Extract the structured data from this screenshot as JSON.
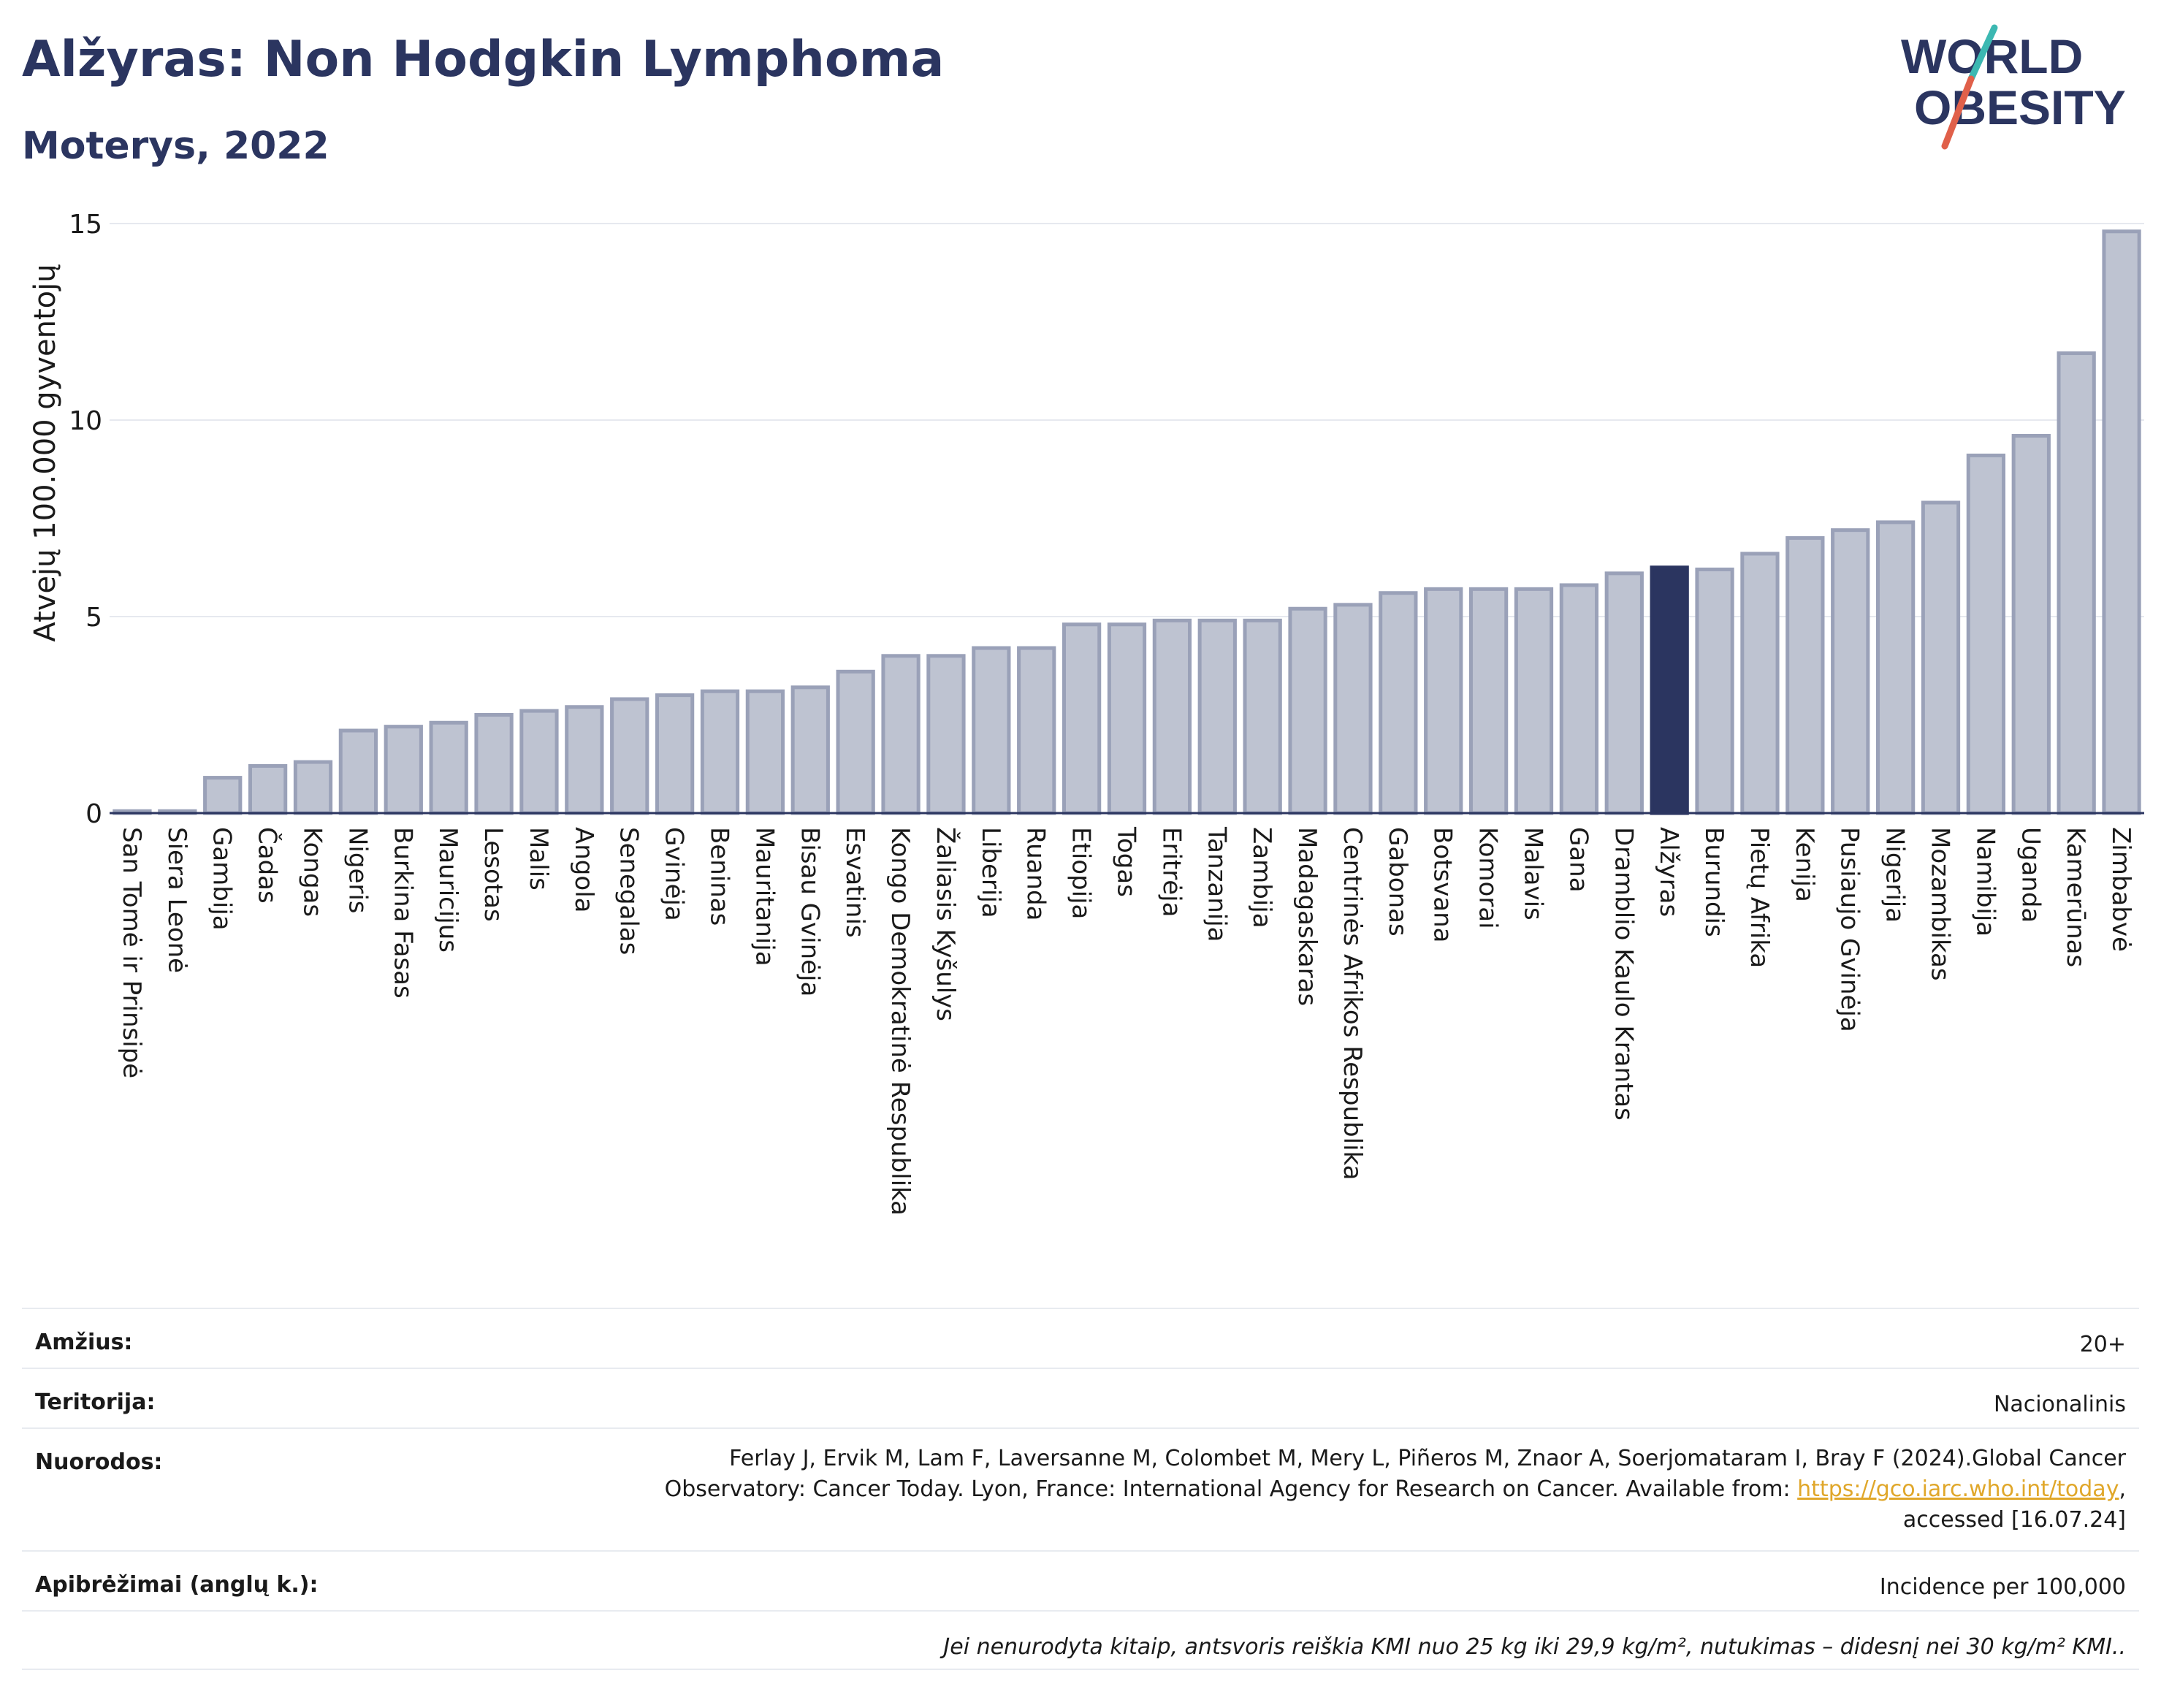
{
  "header": {
    "title": "Alžyras: Non Hodgkin Lymphoma",
    "subtitle": "Moterys, 2022"
  },
  "logo": {
    "line1": "WORLD",
    "line2": "OBESITY",
    "colors": [
      "#2b3560",
      "#3cb8b2",
      "#e0604a"
    ]
  },
  "colors": {
    "bar": "#bec3d1",
    "bar_stroke": "#9aa1b8",
    "highlight": "#2b3560",
    "grid": "#e6e9ef",
    "axis": "#2b3560"
  },
  "chart_data": {
    "type": "bar",
    "ylabel": "Atvejų 100.000 gyventojų",
    "ylim": [
      0,
      15
    ],
    "yticks": [
      0,
      5,
      10,
      15
    ],
    "highlight": "Alžyras",
    "categories": [
      "San Tomė ir Prinsipė",
      "Siera Leonė",
      "Gambija",
      "Čadas",
      "Kongas",
      "Nigeris",
      "Burkina Fasas",
      "Mauricijus",
      "Lesotas",
      "Malis",
      "Angola",
      "Senegalas",
      "Gvinėja",
      "Beninas",
      "Mauritanija",
      "Bisau Gvinėja",
      "Esvatinis",
      "Kongo Demokratinė Respublika",
      "Žaliasis Kyšulys",
      "Liberija",
      "Ruanda",
      "Etiopija",
      "Togas",
      "Eritrėja",
      "Tanzanija",
      "Zambija",
      "Madagaskaras",
      "Centrinės Afrikos Respublika",
      "Gabonas",
      "Botsvana",
      "Komorai",
      "Malavis",
      "Gana",
      "Dramblio Kaulo Krantas",
      "Alžyras",
      "Burundis",
      "Pietų Afrika",
      "Kenija",
      "Pusiaujo Gvinėja",
      "Nigerija",
      "Mozambikas",
      "Namibija",
      "Uganda",
      "Kamerūnas",
      "Zimbabvė"
    ],
    "values": [
      0.05,
      0.05,
      0.9,
      1.2,
      1.3,
      2.1,
      2.2,
      2.3,
      2.5,
      2.6,
      2.7,
      2.9,
      3.0,
      3.1,
      3.1,
      3.2,
      3.6,
      4.0,
      4.0,
      4.2,
      4.2,
      4.8,
      4.8,
      4.9,
      4.9,
      4.9,
      5.2,
      5.3,
      5.6,
      5.7,
      5.7,
      5.7,
      5.8,
      6.1,
      6.25,
      6.2,
      6.6,
      7.0,
      7.2,
      7.4,
      7.9,
      9.1,
      9.6,
      11.7,
      14.8
    ]
  },
  "info": {
    "age_label": "Amžius:",
    "age_value": "20+",
    "territory_label": "Teritorija:",
    "territory_value": "Nacionalinis",
    "refs_label": "Nuorodos:",
    "refs_text": "Ferlay J, Ervik M, Lam F, Laversanne M, Colombet M, Mery L, Piñeros M, Znaor A, Soerjomataram I, Bray F (2024).Global Cancer Observatory: Cancer Today. Lyon, France: International Agency for Research on Cancer. Available from: ",
    "refs_link": "https://gco.iarc.who.int/today",
    "refs_tail": ", accessed [16.07.24]",
    "defs_label": "Apibrėžimai (anglų k.):",
    "defs_value": "Incidence per 100,000",
    "note": "Jei nenurodyta kitaip, antsvoris reiškia KMI nuo 25 kg iki 29,9 kg/m², nutukimas – didesnį nei 30 kg/m² KMI.."
  }
}
